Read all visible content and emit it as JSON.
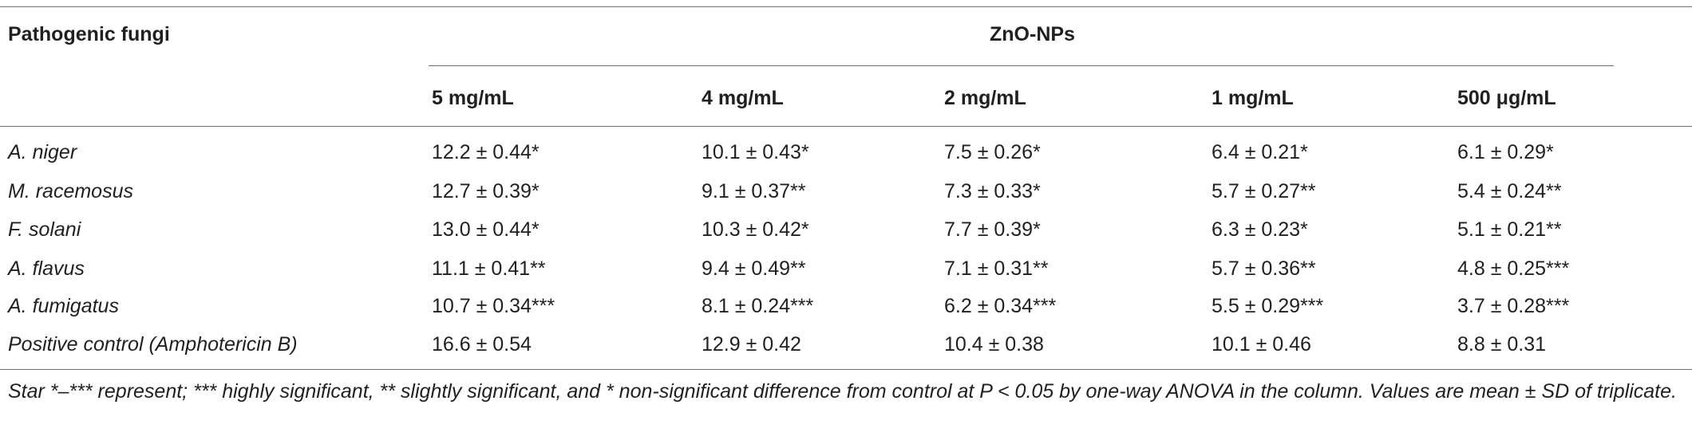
{
  "table": {
    "header": {
      "row_label": "Pathogenic fungi",
      "group_label": "ZnO-NPs",
      "concentrations": [
        "5 mg/mL",
        "4 mg/mL",
        "2 mg/mL",
        "1 mg/mL",
        "500 μg/mL"
      ]
    },
    "rows": [
      {
        "name": "A. niger",
        "values": [
          "12.2 ± 0.44*",
          "10.1 ± 0.43*",
          "7.5 ± 0.26*",
          "6.4 ± 0.21*",
          "6.1 ± 0.29*"
        ]
      },
      {
        "name": "M. racemosus",
        "values": [
          "12.7 ± 0.39*",
          "9.1 ± 0.37**",
          "7.3 ± 0.33*",
          "5.7 ± 0.27**",
          "5.4 ± 0.24**"
        ]
      },
      {
        "name": "F. solani",
        "values": [
          "13.0 ± 0.44*",
          "10.3 ± 0.42*",
          "7.7 ± 0.39*",
          "6.3 ± 0.23*",
          "5.1 ± 0.21**"
        ]
      },
      {
        "name": "A. flavus",
        "values": [
          "11.1 ± 0.41**",
          "9.4 ± 0.49**",
          "7.1 ± 0.31**",
          "5.7 ± 0.36**",
          "4.8 ± 0.25***"
        ]
      },
      {
        "name": "A. fumigatus",
        "values": [
          "10.7 ± 0.34***",
          "8.1 ± 0.24***",
          "6.2 ± 0.34***",
          "5.5 ± 0.29***",
          "3.7 ± 0.28***"
        ]
      },
      {
        "name": "Positive control (Amphotericin B)",
        "values": [
          "16.6 ± 0.54",
          "12.9 ± 0.42",
          "10.4 ± 0.38",
          "10.1 ± 0.46",
          "8.8 ± 0.31"
        ]
      }
    ],
    "footnote": "Star *–*** represent; *** highly significant, ** slightly significant, and * non-significant difference from control at P < 0.05 by one-way ANOVA in the column. Values are mean ± SD of triplicate."
  }
}
